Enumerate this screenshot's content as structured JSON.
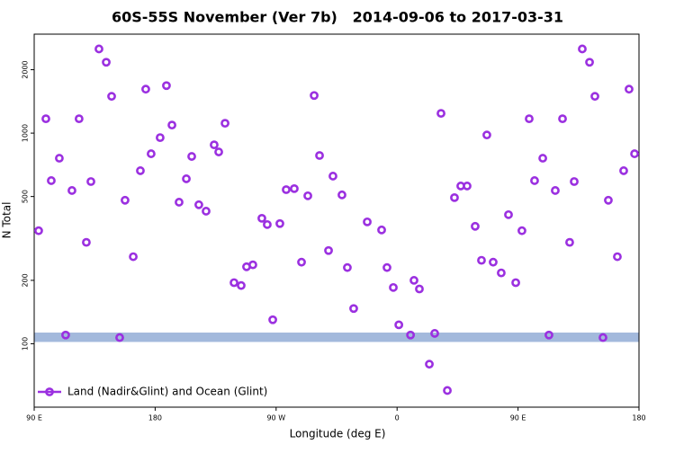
{
  "chart_data": {
    "type": "scatter",
    "log_y": true,
    "title": "60S-55S November (Ver 7b)   2014-09-06 to 2017-03-31",
    "x_label": "Longitude (deg E)",
    "y_label": "N Total",
    "xlim": [
      90,
      540
    ],
    "xticks": [
      {
        "value": 90,
        "label": "90 E"
      },
      {
        "value": 180,
        "label": "180"
      },
      {
        "value": 270,
        "label": "90 W"
      },
      {
        "value": 360,
        "label": "0"
      },
      {
        "value": 450,
        "label": "90 E"
      },
      {
        "value": 540,
        "label": "180"
      }
    ],
    "ylim": [
      50,
      2950
    ],
    "yticks": [
      100,
      200,
      500,
      1000,
      2000
    ],
    "band": [
      102,
      113
    ],
    "band_color": "#a3b9dc",
    "legend": "lower left",
    "series": [
      {
        "name": "Land (Nadir&Glint) and Ocean (Glint)",
        "color": "#9b30e0",
        "x": [
          93.3,
          98.7,
          102.7,
          108.7,
          113.4,
          118.1,
          123.4,
          128.8,
          132.2,
          138.2,
          143.6,
          147.6,
          153.6,
          157.6,
          163.7,
          169,
          173,
          177,
          183.7,
          188.4,
          192.5,
          197.8,
          203.2,
          207.2,
          212.5,
          217.9,
          223.9,
          227.3,
          232,
          238.7,
          244,
          248,
          252.7,
          259.4,
          263.4,
          267.5,
          272.8,
          277.5,
          283.5,
          288.9,
          293.6,
          298.3,
          302.3,
          309,
          312.3,
          319,
          323,
          327.7,
          337.8,
          348.5,
          352.5,
          357.2,
          361.3,
          370,
          372.6,
          376.6,
          384,
          388,
          392.7,
          397.4,
          402.7,
          407.4,
          412.1,
          418.1,
          422.8,
          426.8,
          431.5,
          437.5,
          442.9,
          448.3,
          452.9,
          458.3,
          462.3,
          468.4,
          473,
          477.7,
          483.1,
          488.4,
          491.8,
          497.8,
          503.2,
          507.2,
          513.2,
          517.2,
          523.9,
          528.6,
          532.6,
          536.7
        ],
        "values": [
          344,
          1170,
          595,
          760,
          110,
          534,
          1170,
          303,
          589,
          2510,
          2170,
          1495,
          107,
          480,
          259,
          663,
          1617,
          798,
          952,
          1681,
          1092,
          470,
          607,
          775,
          457,
          426,
          880,
          814,
          1114,
          195,
          189,
          232,
          237,
          394,
          368,
          130,
          372,
          539,
          545,
          244,
          504,
          1509,
          783,
          277,
          625,
          509,
          230,
          147,
          379,
          347,
          230,
          185,
          123,
          110,
          200,
          182,
          80,
          112,
          1241,
          60,
          494,
          561,
          561,
          361,
          249,
          980,
          244,
          217,
          410,
          195,
          344,
          1170,
          595,
          760,
          110,
          534,
          1170,
          303,
          589,
          2510,
          2170,
          1495,
          107,
          480,
          259,
          663,
          1617,
          798
        ]
      }
    ]
  }
}
